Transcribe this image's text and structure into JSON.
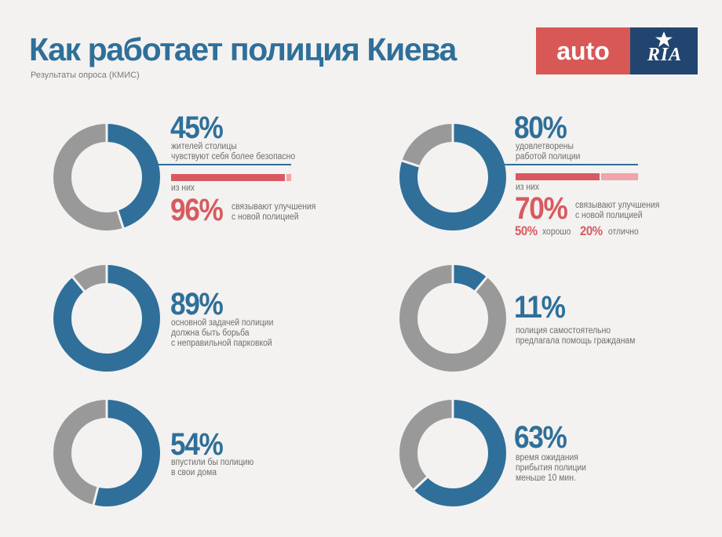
{
  "header": {
    "title": "Как работает полиция Киева",
    "subtitle": "Результаты опроса (КМИС)"
  },
  "logo": {
    "auto": "auto",
    "ria": "RIA",
    "colors": {
      "auto_bg": "#d85856",
      "ria_bg": "#21456f"
    }
  },
  "colors": {
    "primary": "#2f6f9a",
    "secondary": "#999999",
    "accent": "#d85a60",
    "accent_light": "#f1a4aa"
  },
  "blocks": {
    "safety": {
      "pct": "45%",
      "desc": "жителей столицы\nчувствуют себя более безопасно",
      "of_them": "из них",
      "sub_pct": "96%",
      "sub_desc": "связывают улучшения\nс новой полицией"
    },
    "satisfied": {
      "pct": "80%",
      "desc": "удовлетворены\nработой полиции",
      "of_them": "из них",
      "sub_pct": "70%",
      "sub_desc": "связывают улучшения\nс новой полицией",
      "good_pct": "50%",
      "good_label": "хорошо",
      "excellent_pct": "20%",
      "excellent_label": "отлично"
    },
    "parking": {
      "pct": "89%",
      "desc": "основной задачей полиции\nдолжна быть борьба\nс неправильной парковкой"
    },
    "help": {
      "pct": "11%",
      "desc": "полиция самостоятельно\nпредлагала помощь гражданам"
    },
    "home": {
      "pct": "54%",
      "desc": "впустили бы полицию\nв свои дома"
    },
    "wait": {
      "pct": "63%",
      "desc": "время ожидания\nприбытия полиции\nменьше 10 мин."
    }
  },
  "chart_data": [
    {
      "type": "pie",
      "style": "donut",
      "values": [
        45,
        55
      ],
      "sub_bar": {
        "value": 96,
        "max": 100
      }
    },
    {
      "type": "pie",
      "style": "donut",
      "values": [
        80,
        20
      ],
      "sub_bar": {
        "value": 70,
        "max": 100,
        "breakdown": [
          50,
          20
        ]
      }
    },
    {
      "type": "pie",
      "style": "donut",
      "values": [
        89,
        11
      ]
    },
    {
      "type": "pie",
      "style": "donut",
      "values": [
        11,
        89
      ]
    },
    {
      "type": "pie",
      "style": "donut",
      "values": [
        54,
        46
      ]
    },
    {
      "type": "pie",
      "style": "donut",
      "values": [
        63,
        37
      ]
    }
  ]
}
